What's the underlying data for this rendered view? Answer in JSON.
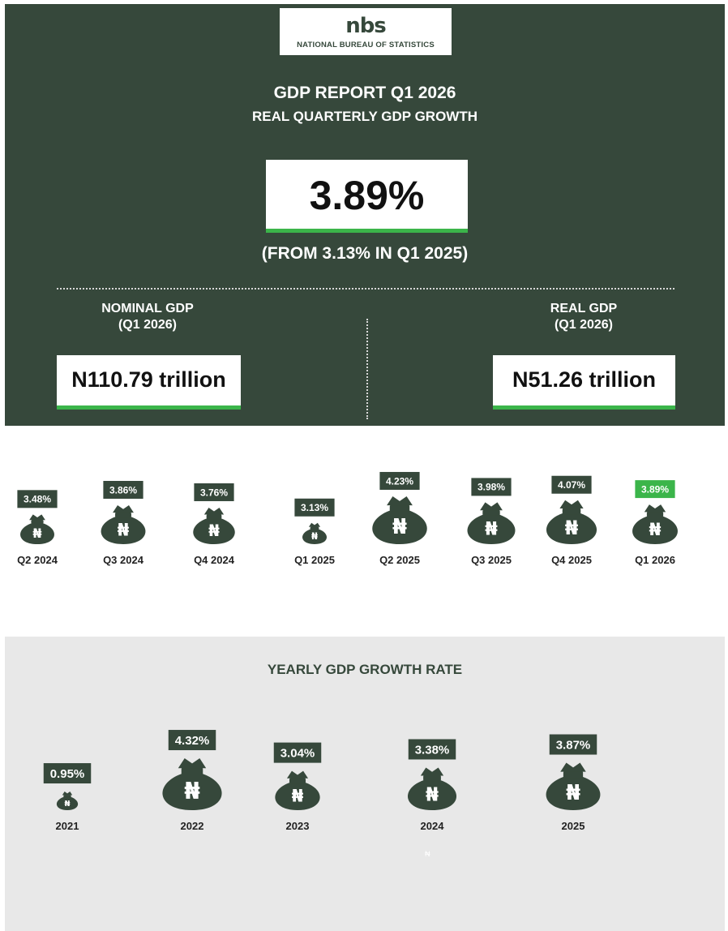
{
  "header": {
    "logo_mark": "nbs",
    "logo_name": "NATIONAL BUREAU OF STATISTICS",
    "title": "GDP REPORT Q1 2026",
    "subtitle": "REAL QUARTERLY GDP GROWTH",
    "headline_value": "3.89%",
    "from_text": "(FROM 3.13% IN Q1 2025)",
    "nominal_label_line1": "NOMINAL GDP",
    "nominal_label_line2": "(Q1 2026)",
    "nominal_value": "N110.79 trillion",
    "real_label_line1": "REAL GDP",
    "real_label_line2": "(Q1 2026)",
    "real_value": "N51.26 trillion"
  },
  "currency_symbol": "₦",
  "colors": {
    "dark_green": "#36483b",
    "accent_green": "#3bb54a",
    "light_gray": "#e8e8e8"
  },
  "chart_data": [
    {
      "type": "bar",
      "title": "",
      "categories": [
        "Q2 2024",
        "Q3 2024",
        "Q4 2024",
        "Q1 2025",
        "Q2 2025",
        "Q3 2025",
        "Q4 2025",
        "Q1 2026"
      ],
      "values": [
        3.48,
        3.86,
        3.76,
        3.13,
        4.23,
        3.98,
        4.07,
        3.89
      ],
      "data_labels": [
        "3.48%",
        "3.86%",
        "3.76%",
        "3.13%",
        "4.23%",
        "3.98%",
        "4.07%",
        "3.89%"
      ],
      "highlight": "Q1 2026"
    },
    {
      "type": "bar",
      "title": "YEARLY GDP GROWTH RATE",
      "categories": [
        "2021",
        "2022",
        "2023",
        "2024",
        "2025"
      ],
      "values": [
        0.95,
        4.32,
        3.04,
        3.38,
        3.87
      ],
      "data_labels": [
        "0.95%",
        "4.32%",
        "3.04%",
        "3.38%",
        "3.87%"
      ]
    }
  ]
}
